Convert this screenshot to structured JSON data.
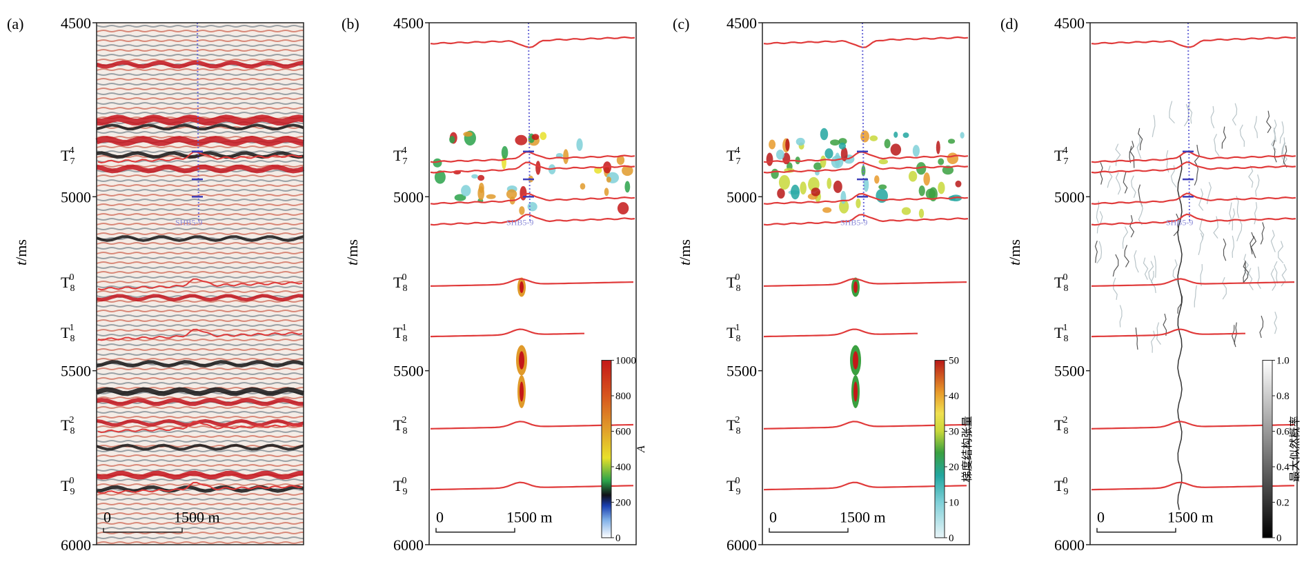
{
  "panels": [
    {
      "id": "a",
      "label": "(a)",
      "type": "seismic"
    },
    {
      "id": "b",
      "label": "(b)",
      "type": "attribute-A"
    },
    {
      "id": "c",
      "label": "(c)",
      "type": "attribute-tensor"
    },
    {
      "id": "d",
      "label": "(d)",
      "type": "attribute-likelihood"
    }
  ],
  "y_axis": {
    "label_italic": "t",
    "label_unit": "/ms",
    "ticks": [
      "4500",
      "5000",
      "5500",
      "6000"
    ],
    "range": [
      4500,
      6000
    ]
  },
  "horizons": [
    {
      "base": "T",
      "sub": "7",
      "sup": "4",
      "t": 4880
    },
    {
      "base": "T",
      "sub": "8",
      "sup": "0",
      "t": 5245
    },
    {
      "base": "T",
      "sub": "8",
      "sup": "1",
      "t": 5390
    },
    {
      "base": "T",
      "sub": "8",
      "sup": "2",
      "t": 5655
    },
    {
      "base": "T",
      "sub": "9",
      "sup": "0",
      "t": 5830
    }
  ],
  "scale_bar": {
    "start": "0",
    "end": "1500 m"
  },
  "colorbars": {
    "b": {
      "title": "A",
      "ticks": [
        "1000",
        "800",
        "600",
        "400",
        "200",
        "0"
      ]
    },
    "c": {
      "title": "梯度结构张量",
      "ticks": [
        "50",
        "40",
        "30",
        "20",
        "10",
        "0"
      ]
    },
    "d": {
      "title": "最大似然概率",
      "ticks": [
        "1.0",
        "0.8",
        "0.6",
        "0.4",
        "0.2",
        "0"
      ]
    }
  },
  "well_label": "SHB5-9",
  "colors": {
    "horizon_red": "#e03a3a",
    "well_blue": "#6a6ad8",
    "seismic_red": "#c4141c",
    "seismic_black": "#151515"
  }
}
